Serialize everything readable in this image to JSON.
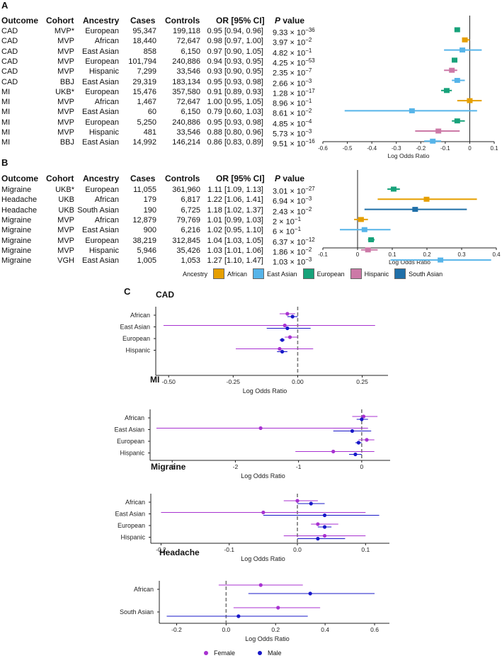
{
  "panel_labels": {
    "a": "A",
    "b": "B",
    "c": "C"
  },
  "table_headers": {
    "outcome": "Outcome",
    "cohort": "Cohort",
    "ancestry": "Ancestry",
    "cases": "Cases",
    "controls": "Controls",
    "or_ci": "OR [95% CI]",
    "p_prefix": "P",
    "p_suffix": " value"
  },
  "ancestry_colors": {
    "African": "#E69F00",
    "East Asian": "#56B4E9",
    "European": "#17A27A",
    "Hispanic": "#CC79A7",
    "South Asian": "#1F6FA8"
  },
  "sex_colors": {
    "Female": "#A832D1",
    "Male": "#1818C8"
  },
  "legend_ancestry": {
    "title": "Ancestry",
    "items": [
      "African",
      "East Asian",
      "European",
      "Hispanic",
      "South Asian"
    ]
  },
  "legend_sex": {
    "items": [
      "Female",
      "Male"
    ]
  },
  "chart_data": [
    {
      "type": "forest",
      "panel": "A",
      "xlabel": "Log Odds Ratio",
      "xlim": [
        -0.6,
        0.1
      ],
      "ticks": [
        -0.6,
        -0.5,
        -0.4,
        -0.3,
        -0.2,
        -0.1,
        0.0,
        0.1
      ],
      "tick_labels": [
        "-0.6",
        "-0.5",
        "-0.4",
        "-0.3",
        "-0.2",
        "-0.1",
        "0",
        "0.1"
      ],
      "rows": [
        {
          "outcome": "CAD",
          "cohort": "MVP*",
          "ancestry": "European",
          "cases": "95,347",
          "controls": "199,118",
          "or_ci": "0.95 [0.94, 0.96]",
          "p_mant": "9.33",
          "p_exp": "−36",
          "est": -0.051,
          "lo": -0.062,
          "hi": -0.041
        },
        {
          "outcome": "CAD",
          "cohort": "MVP",
          "ancestry": "African",
          "cases": "18,440",
          "controls": "72,647",
          "or_ci": "0.98 [0.97, 1.00]",
          "p_mant": "3.97",
          "p_exp": "−2",
          "est": -0.02,
          "lo": -0.03,
          "hi": 0.0
        },
        {
          "outcome": "CAD",
          "cohort": "MVP",
          "ancestry": "East Asian",
          "cases": "858",
          "controls": "6,150",
          "or_ci": "0.97 [0.90, 1.05]",
          "p_mant": "4.82",
          "p_exp": "−1",
          "est": -0.03,
          "lo": -0.105,
          "hi": 0.049
        },
        {
          "outcome": "CAD",
          "cohort": "MVP",
          "ancestry": "European",
          "cases": "101,794",
          "controls": "240,886",
          "or_ci": "0.94 [0.93, 0.95]",
          "p_mant": "4.25",
          "p_exp": "−53",
          "est": -0.062,
          "lo": -0.073,
          "hi": -0.051
        },
        {
          "outcome": "CAD",
          "cohort": "MVP",
          "ancestry": "Hispanic",
          "cases": "7,299",
          "controls": "33,546",
          "or_ci": "0.93 [0.90, 0.95]",
          "p_mant": "2.35",
          "p_exp": "−7",
          "est": -0.073,
          "lo": -0.105,
          "hi": -0.051
        },
        {
          "outcome": "CAD",
          "cohort": "BBJ",
          "ancestry": "East Asian",
          "cases": "29,319",
          "controls": "183,134",
          "or_ci": "0.95 [0.93, 0.98]",
          "p_mant": "2.66",
          "p_exp": "−3",
          "est": -0.051,
          "lo": -0.073,
          "hi": -0.02
        },
        {
          "outcome": "MI",
          "cohort": "UKB*",
          "ancestry": "European",
          "cases": "15,476",
          "controls": "357,580",
          "or_ci": "0.91 [0.89, 0.93]",
          "p_mant": "1.28",
          "p_exp": "−17",
          "est": -0.094,
          "lo": -0.117,
          "hi": -0.073
        },
        {
          "outcome": "MI",
          "cohort": "MVP",
          "ancestry": "African",
          "cases": "1,467",
          "controls": "72,647",
          "or_ci": "1.00 [0.95, 1.05]",
          "p_mant": "8.96",
          "p_exp": "−1",
          "est": 0.0,
          "lo": -0.051,
          "hi": 0.049
        },
        {
          "outcome": "MI",
          "cohort": "MVP",
          "ancestry": "East Asian",
          "cases": "60",
          "controls": "6,150",
          "or_ci": "0.79 [0.60, 1.03]",
          "p_mant": "8.61",
          "p_exp": "−2",
          "est": -0.236,
          "lo": -0.511,
          "hi": 0.03
        },
        {
          "outcome": "MI",
          "cohort": "MVP",
          "ancestry": "European",
          "cases": "5,250",
          "controls": "240,886",
          "or_ci": "0.95 [0.93, 0.98]",
          "p_mant": "4.85",
          "p_exp": "−4",
          "est": -0.051,
          "lo": -0.073,
          "hi": -0.02
        },
        {
          "outcome": "MI",
          "cohort": "MVP",
          "ancestry": "Hispanic",
          "cases": "481",
          "controls": "33,546",
          "or_ci": "0.88 [0.80, 0.96]",
          "p_mant": "5.73",
          "p_exp": "−3",
          "est": -0.128,
          "lo": -0.223,
          "hi": -0.041
        },
        {
          "outcome": "MI",
          "cohort": "BBJ",
          "ancestry": "East Asian",
          "cases": "14,992",
          "controls": "146,214",
          "or_ci": "0.86 [0.83, 0.89]",
          "p_mant": "9.51",
          "p_exp": "−16",
          "est": -0.151,
          "lo": -0.186,
          "hi": -0.117
        }
      ]
    },
    {
      "type": "forest",
      "panel": "B",
      "xlabel": "Log Odds Ratio",
      "xlim": [
        -0.1,
        0.4
      ],
      "ticks": [
        -0.1,
        0.0,
        0.1,
        0.2,
        0.3,
        0.4
      ],
      "tick_labels": [
        "-0.1",
        "0",
        "0.1",
        "0.2",
        "0.3",
        "0.4"
      ],
      "rows": [
        {
          "outcome": "Migraine",
          "cohort": "UKB*",
          "ancestry": "European",
          "cases": "11,055",
          "controls": "361,960",
          "or_ci": "1.11 [1.09, 1.13]",
          "p_mant": "3.01",
          "p_exp": "−27",
          "est": 0.104,
          "lo": 0.086,
          "hi": 0.122
        },
        {
          "outcome": "Headache",
          "cohort": "UKB",
          "ancestry": "African",
          "cases": "179",
          "controls": "6,817",
          "or_ci": "1.22 [1.06, 1.41]",
          "p_mant": "6.94",
          "p_exp": "−3",
          "est": 0.199,
          "lo": 0.058,
          "hi": 0.344
        },
        {
          "outcome": "Headache",
          "cohort": "UKB",
          "ancestry": "South Asian",
          "cases": "190",
          "controls": "6,725",
          "or_ci": "1.18 [1.02, 1.37]",
          "p_mant": "2.43",
          "p_exp": "−2",
          "est": 0.166,
          "lo": 0.02,
          "hi": 0.315
        },
        {
          "outcome": "Migraine",
          "cohort": "MVP",
          "ancestry": "African",
          "cases": "12,879",
          "controls": "79,769",
          "or_ci": "1.01 [0.99, 1.03]",
          "p_mant": "2",
          "p_exp": "−1",
          "est": 0.01,
          "lo": -0.01,
          "hi": 0.03
        },
        {
          "outcome": "Migraine",
          "cohort": "MVP",
          "ancestry": "East Asian",
          "cases": "900",
          "controls": "6,216",
          "or_ci": "1.02 [0.95, 1.10]",
          "p_mant": "6",
          "p_exp": "−1",
          "est": 0.02,
          "lo": -0.051,
          "hi": 0.095
        },
        {
          "outcome": "Migraine",
          "cohort": "MVP",
          "ancestry": "European",
          "cases": "38,219",
          "controls": "312,845",
          "or_ci": "1.04 [1.03, 1.05]",
          "p_mant": "6.37",
          "p_exp": "−12",
          "est": 0.039,
          "lo": 0.03,
          "hi": 0.049
        },
        {
          "outcome": "Migraine",
          "cohort": "MVP",
          "ancestry": "Hispanic",
          "cases": "5,946",
          "controls": "35,426",
          "or_ci": "1.03 [1.01, 1.06]",
          "p_mant": "1.86",
          "p_exp": "−2",
          "est": 0.03,
          "lo": 0.01,
          "hi": 0.058
        },
        {
          "outcome": "Migraine",
          "cohort": "VGH",
          "ancestry": "East Asian",
          "cases": "1,005",
          "controls": "1,053",
          "or_ci": "1.27 [1.10, 1.47]",
          "p_mant": "1.03",
          "p_exp": "−3",
          "est": 0.239,
          "lo": 0.095,
          "hi": 0.385
        }
      ]
    },
    {
      "type": "forest-sex",
      "panel": "C",
      "title": "CAD",
      "xlabel": "Log Odds Ratio",
      "xlim": [
        -0.55,
        0.35
      ],
      "ticks": [
        -0.5,
        -0.25,
        0.0,
        0.25
      ],
      "tick_labels": [
        "-0.50",
        "-0.25",
        "0.00",
        "0.25"
      ],
      "categories": [
        "African",
        "East Asian",
        "European",
        "Hispanic"
      ],
      "series": [
        {
          "name": "Female",
          "points": [
            {
              "est": -0.04,
              "lo": -0.07,
              "hi": -0.01
            },
            {
              "est": -0.05,
              "lo": -0.52,
              "hi": 0.3
            },
            {
              "est": -0.03,
              "lo": -0.05,
              "hi": 0.0
            },
            {
              "est": -0.07,
              "lo": -0.24,
              "hi": 0.06
            }
          ]
        },
        {
          "name": "Male",
          "points": [
            {
              "est": -0.02,
              "lo": -0.04,
              "hi": 0.0
            },
            {
              "est": -0.04,
              "lo": -0.12,
              "hi": 0.05
            },
            {
              "est": -0.06,
              "lo": -0.07,
              "hi": -0.05
            },
            {
              "est": -0.06,
              "lo": -0.08,
              "hi": -0.04
            }
          ]
        }
      ]
    },
    {
      "type": "forest-sex",
      "panel": "C",
      "title": "MI",
      "xlabel": "Log Odds Ratio",
      "xlim": [
        -3.35,
        0.45
      ],
      "ticks": [
        -3,
        -2,
        -1,
        0
      ],
      "tick_labels": [
        "-3",
        "-2",
        "-1",
        "0"
      ],
      "categories": [
        "African",
        "East Asian",
        "European",
        "Hispanic"
      ],
      "series": [
        {
          "name": "Female",
          "points": [
            {
              "est": 0.03,
              "lo": -0.15,
              "hi": 0.25
            },
            {
              "est": -1.6,
              "lo": -3.25,
              "hi": 0.1
            },
            {
              "est": 0.08,
              "lo": -0.05,
              "hi": 0.2
            },
            {
              "est": -0.45,
              "lo": -1.05,
              "hi": 0.2
            }
          ]
        },
        {
          "name": "Male",
          "points": [
            {
              "est": 0.0,
              "lo": -0.08,
              "hi": 0.1
            },
            {
              "est": -0.15,
              "lo": -0.45,
              "hi": 0.15
            },
            {
              "est": -0.05,
              "lo": -0.1,
              "hi": 0.0
            },
            {
              "est": -0.1,
              "lo": -0.2,
              "hi": 0.0
            }
          ]
        }
      ]
    },
    {
      "type": "forest-sex",
      "panel": "C",
      "title": "Migraine",
      "xlabel": "Log Odds Ratio",
      "xlim": [
        -0.215,
        0.135
      ],
      "ticks": [
        -0.2,
        -0.1,
        0.0,
        0.1
      ],
      "tick_labels": [
        "-0.2",
        "-0.1",
        "0.0",
        "0.1"
      ],
      "categories": [
        "African",
        "East Asian",
        "European",
        "Hispanic"
      ],
      "series": [
        {
          "name": "Female",
          "points": [
            {
              "est": 0.0,
              "lo": -0.02,
              "hi": 0.03
            },
            {
              "est": -0.05,
              "lo": -0.2,
              "hi": 0.1
            },
            {
              "est": 0.03,
              "lo": 0.02,
              "hi": 0.06
            },
            {
              "est": 0.04,
              "lo": -0.02,
              "hi": 0.1
            }
          ]
        },
        {
          "name": "Male",
          "points": [
            {
              "est": 0.02,
              "lo": 0.0,
              "hi": 0.04
            },
            {
              "est": 0.04,
              "lo": -0.05,
              "hi": 0.12
            },
            {
              "est": 0.04,
              "lo": 0.03,
              "hi": 0.05
            },
            {
              "est": 0.03,
              "lo": 0.0,
              "hi": 0.07
            }
          ]
        }
      ]
    },
    {
      "type": "forest-sex",
      "panel": "C",
      "title": "Headache",
      "xlabel": "Log Odds Ratio",
      "xlim": [
        -0.27,
        0.66
      ],
      "ticks": [
        -0.2,
        0.0,
        0.2,
        0.4,
        0.6
      ],
      "tick_labels": [
        "-0.2",
        "0.0",
        "0.2",
        "0.4",
        "0.6"
      ],
      "categories": [
        "African",
        "South Asian"
      ],
      "series": [
        {
          "name": "Female",
          "points": [
            {
              "est": 0.14,
              "lo": -0.03,
              "hi": 0.31
            },
            {
              "est": 0.21,
              "lo": 0.03,
              "hi": 0.38
            }
          ]
        },
        {
          "name": "Male",
          "points": [
            {
              "est": 0.34,
              "lo": 0.09,
              "hi": 0.6
            },
            {
              "est": 0.05,
              "lo": -0.24,
              "hi": 0.33
            }
          ]
        }
      ]
    }
  ]
}
